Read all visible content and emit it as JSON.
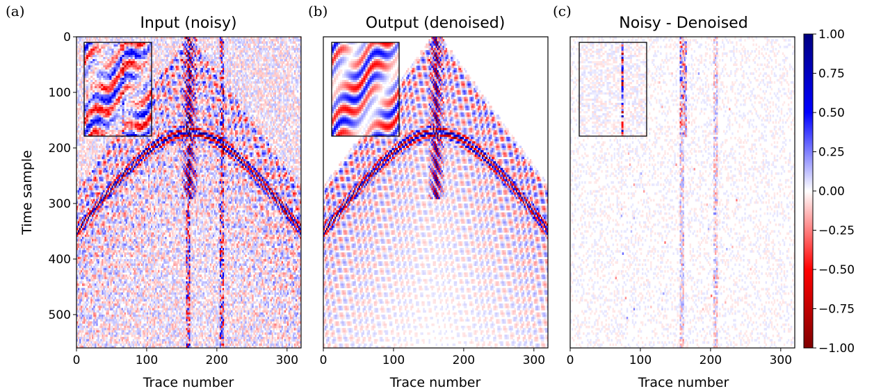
{
  "panels": [
    {
      "label": "(a)",
      "title": "Input (noisy)",
      "xlabel": "Trace number",
      "ylabel": "Time sample",
      "inset": "zoomed-input"
    },
    {
      "label": "(b)",
      "title": "Output (denoised)",
      "xlabel": "Trace number",
      "ylabel": "",
      "inset": "zoomed-output"
    },
    {
      "label": "(c)",
      "title": "Noisy - Denoised",
      "xlabel": "Trace number",
      "ylabel": "",
      "inset": "zoomed-residual"
    }
  ],
  "colormap": {
    "name": "seismic",
    "min_color": "#800000",
    "neg_color": "#ff0000",
    "zero_color": "#ffffff",
    "pos_color": "#0000ff",
    "max_color": "#000080"
  },
  "chart_data": [
    {
      "type": "heatmap",
      "title": "Input (noisy)",
      "xlabel": "Trace number",
      "ylabel": "Time sample",
      "xlim": [
        0,
        320
      ],
      "ylim": [
        560,
        0
      ],
      "xticks": [
        0,
        100,
        200,
        300
      ],
      "yticks": [
        0,
        100,
        200,
        300,
        400,
        500
      ],
      "value_range": [
        -1.0,
        1.0
      ]
    },
    {
      "type": "heatmap",
      "title": "Output (denoised)",
      "xlabel": "Trace number",
      "xlim": [
        0,
        320
      ],
      "ylim": [
        560,
        0
      ],
      "xticks": [
        0,
        100,
        200,
        300
      ],
      "value_range": [
        -1.0,
        1.0
      ]
    },
    {
      "type": "heatmap",
      "title": "Noisy - Denoised",
      "xlabel": "Trace number",
      "xlim": [
        0,
        320
      ],
      "ylim": [
        560,
        0
      ],
      "xticks": [
        0,
        100,
        200,
        300
      ],
      "value_range": [
        -1.0,
        1.0
      ]
    }
  ],
  "colorbar": {
    "range": [
      -1.0,
      1.0
    ],
    "ticks": [
      "1.00",
      "0.75",
      "0.50",
      "0.25",
      "0.00",
      "−0.25",
      "−0.50",
      "−0.75",
      "−1.00"
    ],
    "tick_values": [
      1.0,
      0.75,
      0.5,
      0.25,
      0.0,
      -0.25,
      -0.5,
      -0.75,
      -1.0
    ]
  }
}
